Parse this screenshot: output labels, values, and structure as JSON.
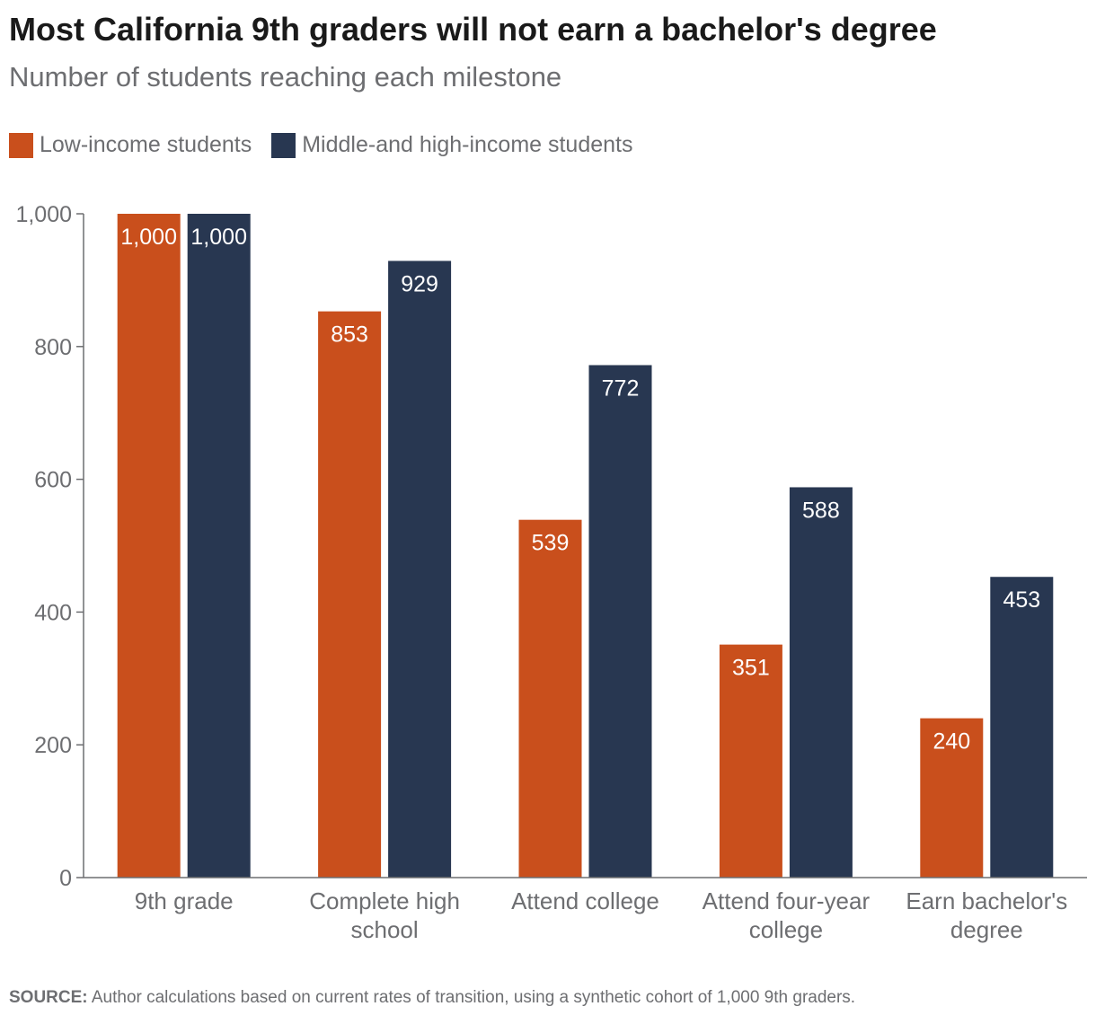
{
  "title": "Most California 9th graders will not earn a bachelor's degree",
  "subtitle": "Number of students reaching each milestone",
  "source": {
    "label": "SOURCE:",
    "text": "Author calculations based on current rates of transition, using a synthetic cohort of 1,000 9th graders."
  },
  "colors": {
    "low_income": "#c94f1c",
    "mid_high_income": "#283751",
    "axis": "#6d6e71",
    "bar_label": "#ffffff"
  },
  "chart_data": {
    "type": "bar",
    "categories": [
      [
        "9th grade"
      ],
      [
        "Complete high",
        "school"
      ],
      [
        "Attend college"
      ],
      [
        "Attend four-year",
        "college"
      ],
      [
        "Earn bachelor's",
        "degree"
      ]
    ],
    "series": [
      {
        "name": "Low-income students",
        "values": [
          1000,
          853,
          539,
          351,
          240
        ],
        "labels": [
          "1,000",
          "853",
          "539",
          "351",
          "240"
        ]
      },
      {
        "name": "Middle-and high-income students",
        "values": [
          1000,
          929,
          772,
          588,
          453
        ],
        "labels": [
          "1,000",
          "929",
          "772",
          "588",
          "453"
        ]
      }
    ],
    "ylim": [
      0,
      1000
    ],
    "yticks": [
      0,
      200,
      400,
      600,
      800,
      1000
    ],
    "ytick_labels": [
      "0",
      "200",
      "400",
      "600",
      "800",
      "1,000"
    ],
    "legend_position": "top-left",
    "grid": false
  }
}
